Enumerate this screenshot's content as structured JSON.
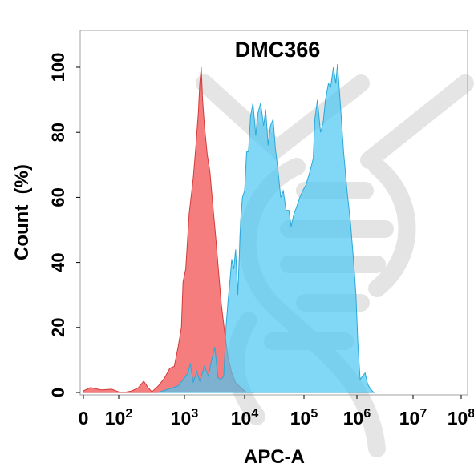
{
  "chart_data": {
    "type": "area",
    "title": "DMC366",
    "xlabel": "APC-A",
    "ylabel": "Count  (%)",
    "x_scale": "biexponential-log",
    "xlim": [
      0,
      100000000
    ],
    "ylim": [
      0,
      105
    ],
    "x_ticks": [
      {
        "value": 0,
        "base": "0",
        "exp": ""
      },
      {
        "value": 100,
        "base": "10",
        "exp": "2"
      },
      {
        "value": 1000,
        "base": "10",
        "exp": "3"
      },
      {
        "value": 10000,
        "base": "10",
        "exp": "4"
      },
      {
        "value": 100000,
        "base": "10",
        "exp": "5"
      },
      {
        "value": 1000000,
        "base": "10",
        "exp": "6"
      },
      {
        "value": 10000000,
        "base": "10",
        "exp": "7"
      },
      {
        "value": 100000000,
        "base": "10",
        "exp": "8"
      }
    ],
    "y_ticks": [
      0,
      20,
      40,
      60,
      80,
      100
    ],
    "grid": false,
    "legend": "none",
    "watermark": "dna-logo",
    "series": [
      {
        "color": "#f25c5c",
        "stroke": "#d23c3c",
        "opacity": 0.8,
        "points": [
          [
            0,
            0.5
          ],
          [
            20,
            1.5
          ],
          [
            50,
            0.8
          ],
          [
            80,
            1.0
          ],
          [
            100,
            0.2
          ],
          [
            120,
            0
          ],
          [
            160,
            0.5
          ],
          [
            200,
            1.5
          ],
          [
            240,
            3.5
          ],
          [
            280,
            1.5
          ],
          [
            320,
            0.2
          ],
          [
            400,
            2.0
          ],
          [
            500,
            4.5
          ],
          [
            600,
            7.5
          ],
          [
            700,
            8.0
          ],
          [
            800,
            14.0
          ],
          [
            900,
            20.0
          ],
          [
            950,
            34.0
          ],
          [
            1050,
            38.0
          ],
          [
            1200,
            55.0
          ],
          [
            1400,
            66.0
          ],
          [
            1550,
            76.0
          ],
          [
            1700,
            86.0
          ],
          [
            1800,
            95.0
          ],
          [
            1900,
            100.0
          ],
          [
            2000,
            90.0
          ],
          [
            2150,
            82.0
          ],
          [
            2400,
            73.0
          ],
          [
            2650,
            68.0
          ],
          [
            2950,
            58.0
          ],
          [
            3300,
            48.0
          ],
          [
            3700,
            37.0
          ],
          [
            4100,
            27.0
          ],
          [
            4700,
            18.0
          ],
          [
            5300,
            11.0
          ],
          [
            6100,
            6.0
          ],
          [
            7100,
            3.0
          ],
          [
            8600,
            1.5
          ],
          [
            10000,
            0.5
          ],
          [
            11000,
            0
          ]
        ]
      },
      {
        "color": "#4cc8f2",
        "stroke": "#2aa8d8",
        "opacity": 0.7,
        "points": [
          [
            400,
            0
          ],
          [
            800,
            2.0
          ],
          [
            1000,
            4.5
          ],
          [
            1150,
            6.0
          ],
          [
            1250,
            9.0
          ],
          [
            1400,
            3.0
          ],
          [
            1600,
            6.5
          ],
          [
            1800,
            3.5
          ],
          [
            2150,
            8.0
          ],
          [
            2500,
            5.0
          ],
          [
            2800,
            9.5
          ],
          [
            3200,
            14.0
          ],
          [
            3600,
            4.5
          ],
          [
            4000,
            4.0
          ],
          [
            4500,
            5.0
          ],
          [
            4900,
            20.0
          ],
          [
            5300,
            28.0
          ],
          [
            5800,
            36.0
          ],
          [
            6100,
            41.0
          ],
          [
            6600,
            38.0
          ],
          [
            7100,
            44.0
          ],
          [
            7700,
            30.0
          ],
          [
            8600,
            53.0
          ],
          [
            9200,
            60.0
          ],
          [
            10000,
            62.0
          ],
          [
            10800,
            74.0
          ],
          [
            11600,
            74.0
          ],
          [
            12600,
            85.0
          ],
          [
            13800,
            89.0
          ],
          [
            15400,
            79.0
          ],
          [
            16800,
            86.0
          ],
          [
            18600,
            89.0
          ],
          [
            20900,
            82.0
          ],
          [
            22600,
            87.0
          ],
          [
            24900,
            76.0
          ],
          [
            27200,
            82.0
          ],
          [
            30200,
            84.0
          ],
          [
            33000,
            75.0
          ],
          [
            36100,
            69.0
          ],
          [
            40600,
            60.0
          ],
          [
            44800,
            62.0
          ],
          [
            50000,
            56.0
          ],
          [
            55700,
            56.0
          ],
          [
            60800,
            51.0
          ],
          [
            68000,
            55.0
          ],
          [
            75000,
            57.0
          ],
          [
            85000,
            60.0
          ],
          [
            95000,
            62.0
          ],
          [
            110000,
            64.0
          ],
          [
            130000,
            68.0
          ],
          [
            150000,
            72.0
          ],
          [
            160000,
            84.0
          ],
          [
            180000,
            90.0
          ],
          [
            205000,
            80.0
          ],
          [
            230000,
            83.0
          ],
          [
            255000,
            90.0
          ],
          [
            290000,
            95.0
          ],
          [
            320000,
            94.0
          ],
          [
            360000,
            100.0
          ],
          [
            400000,
            95.0
          ],
          [
            430000,
            101.0
          ],
          [
            480000,
            90.0
          ],
          [
            560000,
            74.0
          ],
          [
            650000,
            62.0
          ],
          [
            760000,
            52.0
          ],
          [
            870000,
            40.0
          ],
          [
            960000,
            30.0
          ],
          [
            1040000,
            15.0
          ],
          [
            1140000,
            4.0
          ],
          [
            1260000,
            5.0
          ],
          [
            1400000,
            6.0
          ],
          [
            1560000,
            2.5
          ],
          [
            1750000,
            1.0
          ],
          [
            2000000,
            0
          ]
        ]
      }
    ]
  }
}
